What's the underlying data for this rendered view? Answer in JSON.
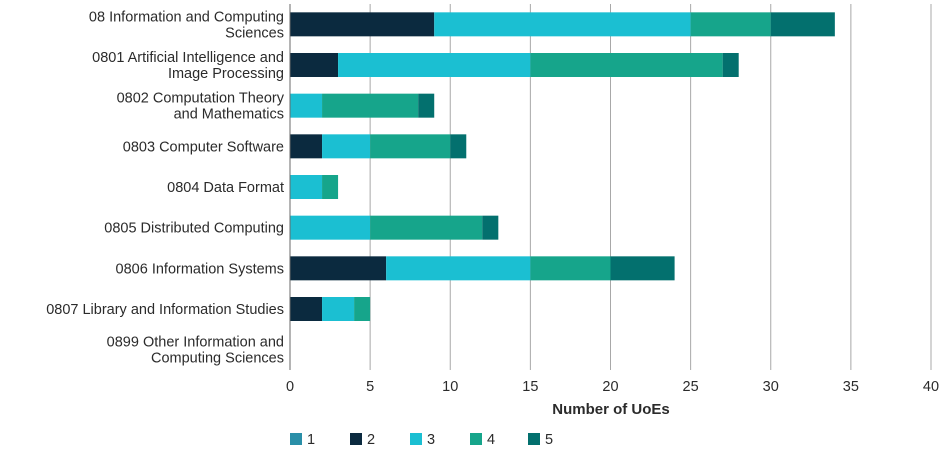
{
  "chart_data": {
    "type": "bar",
    "orientation": "horizontal",
    "stacked": true,
    "title": "",
    "xlabel": "Number of UoEs",
    "ylabel": "",
    "xlim": [
      0,
      40
    ],
    "xticks": [
      0,
      5,
      10,
      15,
      20,
      25,
      30,
      35,
      40
    ],
    "grid": true,
    "legend_position": "bottom-left",
    "categories": [
      [
        "08 Information and Computing",
        "Sciences"
      ],
      [
        "0801 Artificial Intelligence and",
        "Image Processing"
      ],
      [
        "0802 Computation Theory",
        "and Mathematics"
      ],
      [
        "0803 Computer Software"
      ],
      [
        "0804 Data Format"
      ],
      [
        "0805 Distributed Computing"
      ],
      [
        "0806 Information Systems"
      ],
      [
        "0807 Library and Information Studies"
      ],
      [
        "0899 Other Information and",
        "Computing Sciences"
      ]
    ],
    "series": [
      {
        "name": "1",
        "color": "#2a8fa8",
        "values": [
          0,
          0,
          0,
          0,
          0,
          0,
          0,
          0,
          0
        ]
      },
      {
        "name": "2",
        "color": "#0b2a3f",
        "values": [
          9,
          3,
          0,
          2,
          0,
          0,
          6,
          2,
          0
        ]
      },
      {
        "name": "3",
        "color": "#1bbfd2",
        "values": [
          16,
          12,
          2,
          3,
          2,
          5,
          9,
          2,
          0
        ]
      },
      {
        "name": "4",
        "color": "#16a58b",
        "values": [
          5,
          12,
          6,
          5,
          1,
          7,
          5,
          1,
          0
        ]
      },
      {
        "name": "5",
        "color": "#03706e",
        "values": [
          4,
          1,
          1,
          1,
          0,
          1,
          4,
          0,
          0
        ]
      }
    ]
  }
}
